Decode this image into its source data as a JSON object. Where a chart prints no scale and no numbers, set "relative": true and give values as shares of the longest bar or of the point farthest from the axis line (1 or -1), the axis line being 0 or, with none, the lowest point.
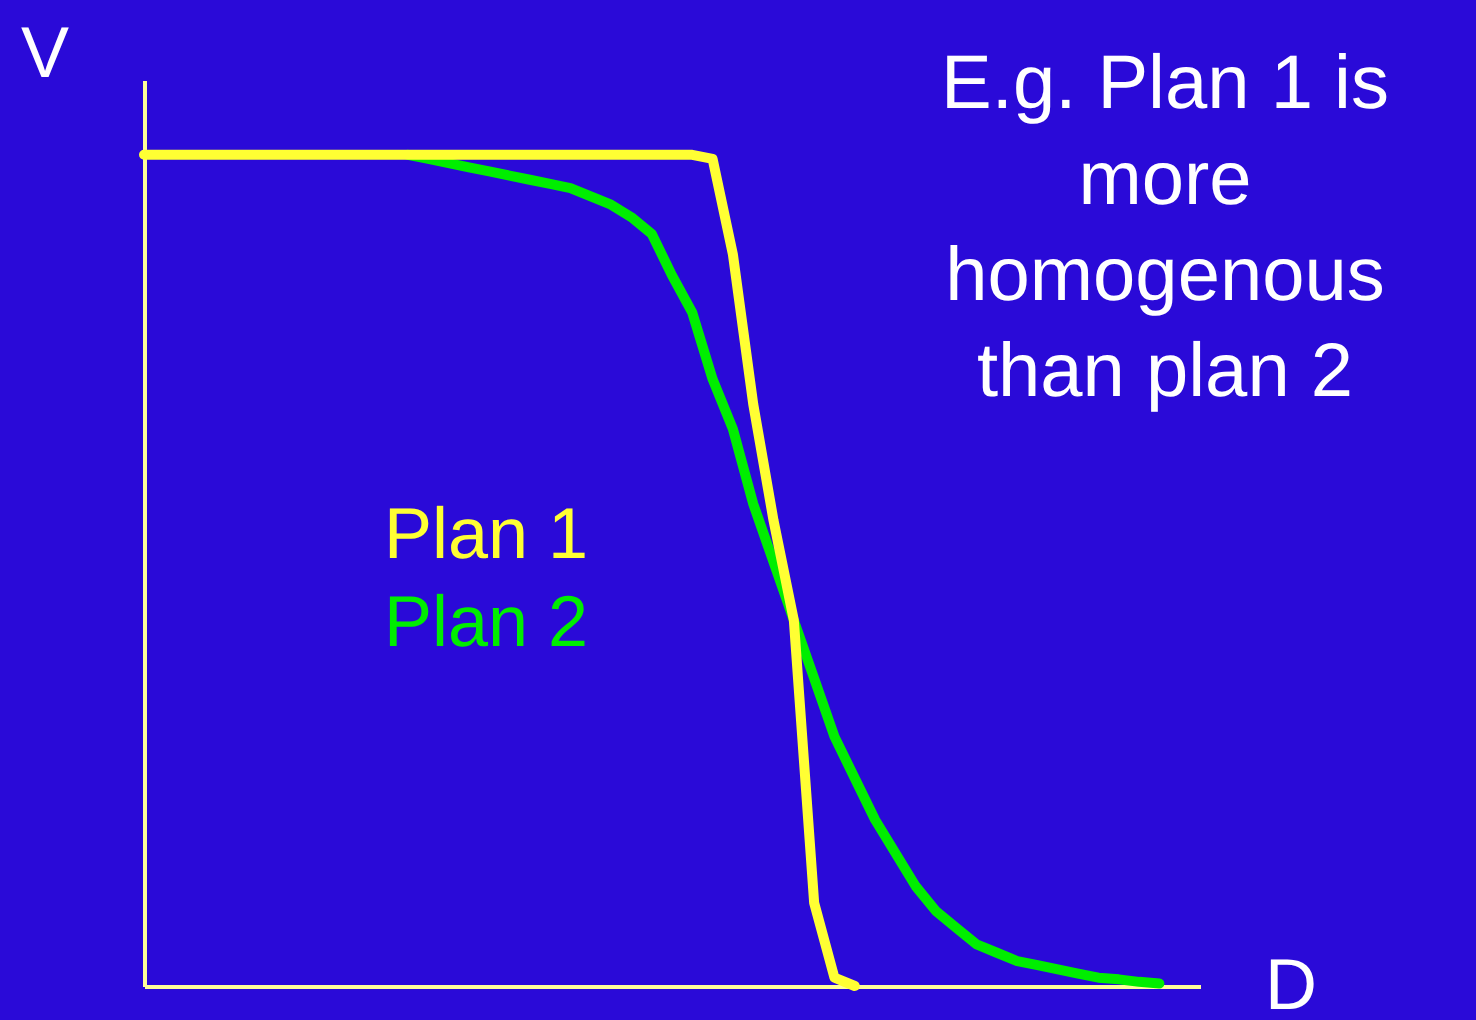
{
  "chart_data": {
    "type": "line",
    "relative": true,
    "xlabel": "D",
    "ylabel": "V",
    "legend": "left",
    "marker": "none",
    "line_style": "solid",
    "grid": false,
    "annotations": [
      "E.g. Plan 1 is more homogenous than plan 2"
    ],
    "categories": [
      null,
      null,
      null,
      null,
      null,
      null,
      null,
      null,
      null,
      null,
      null,
      null,
      null,
      null,
      null,
      null,
      null,
      null,
      null,
      null,
      null,
      null,
      null,
      null,
      null,
      null,
      null,
      null,
      null,
      null,
      null,
      null,
      null,
      null,
      null,
      null,
      null,
      null,
      null,
      null,
      null,
      null,
      null,
      null,
      null,
      null,
      null,
      null,
      null,
      null,
      null,
      null,
      null
    ],
    "series": [
      {
        "name": "Plan 1",
        "color": "#ffff33",
        "values": [
          1,
          1,
          1,
          1,
          1,
          1,
          1,
          1,
          1,
          1,
          1,
          1,
          1,
          1,
          1,
          1,
          1,
          1,
          1,
          1,
          1,
          1,
          1,
          1,
          1,
          1,
          1,
          1,
          0.995,
          0.88,
          0.7,
          0.56,
          0.44,
          0.1,
          0.01,
          0,
          null,
          null,
          null,
          null,
          null,
          null,
          null,
          null,
          null,
          null,
          null,
          null,
          null,
          null,
          null,
          null,
          null
        ]
      },
      {
        "name": "Plan 2",
        "color": "#00ee00",
        "values": [
          null,
          null,
          null,
          null,
          null,
          null,
          null,
          null,
          null,
          null,
          null,
          null,
          null,
          1,
          0.995,
          0.99,
          0.985,
          0.98,
          0.975,
          0.97,
          0.965,
          0.96,
          0.95,
          0.94,
          0.925,
          0.905,
          0.855,
          0.81,
          0.73,
          0.67,
          0.58,
          0.51,
          0.44,
          0.37,
          0.3,
          0.25,
          0.2,
          0.16,
          0.12,
          0.09,
          0.07,
          0.05,
          0.04,
          0.03,
          0.025,
          0.02,
          0.015,
          0.01,
          0.008,
          0.005,
          0.003,
          null,
          null
        ]
      }
    ]
  }
}
